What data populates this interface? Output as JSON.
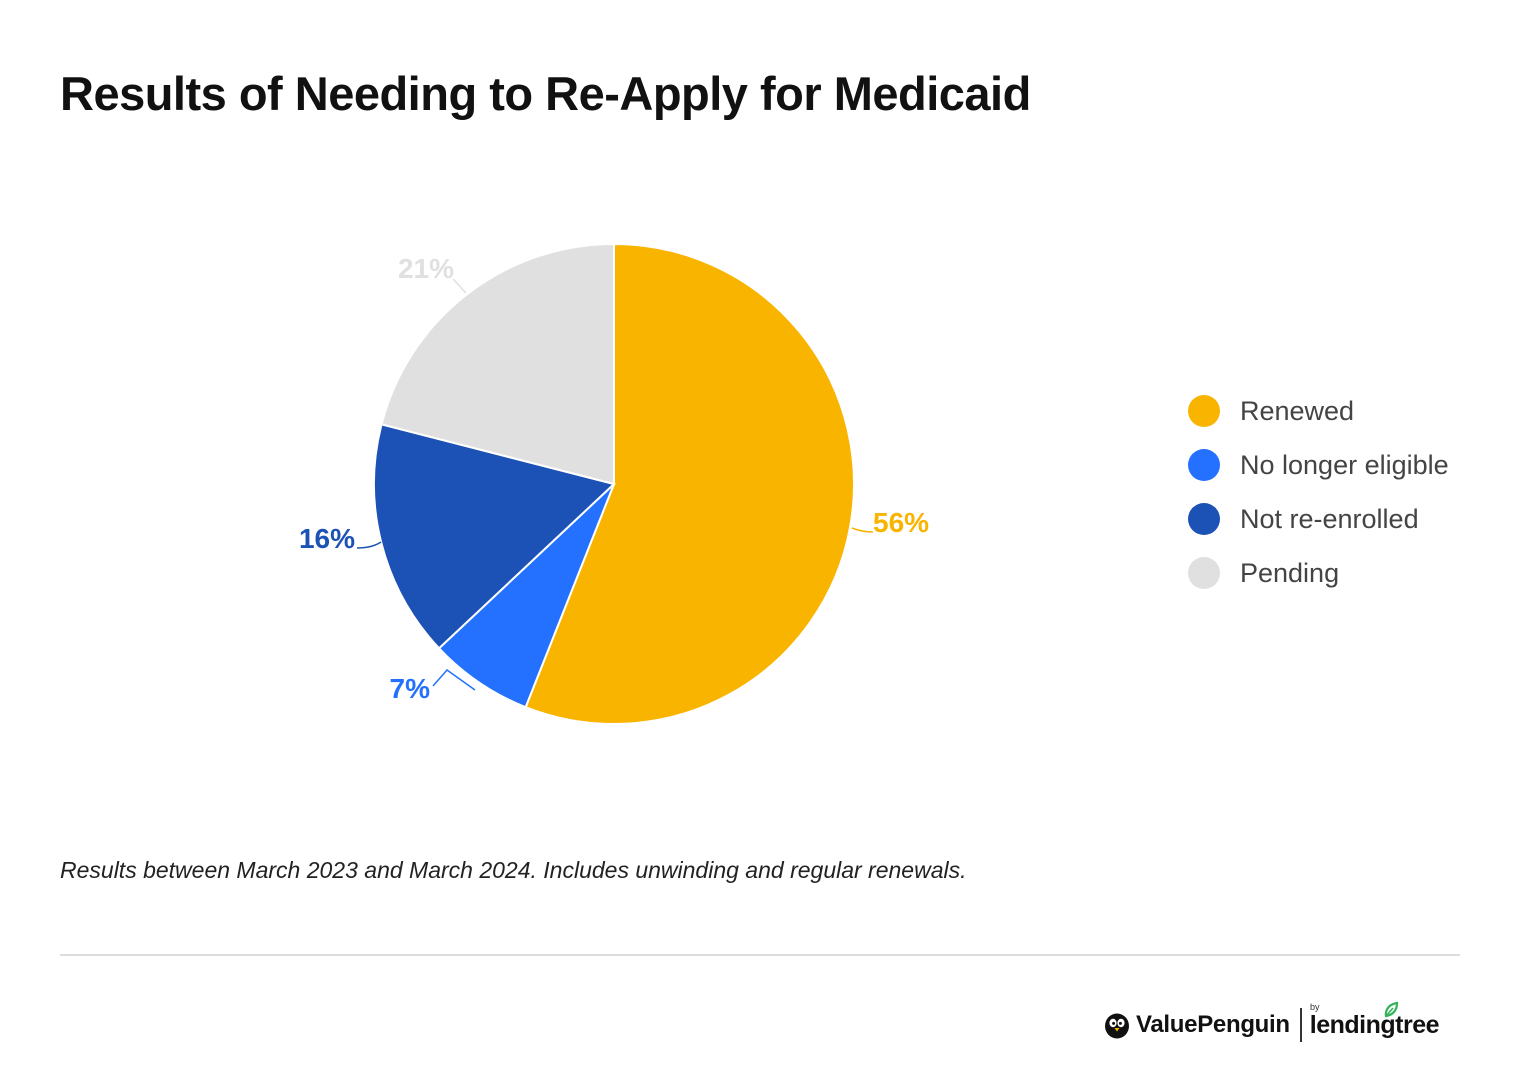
{
  "chart_data": {
    "type": "pie",
    "title": "Results of Needing to Re-Apply for Medicaid",
    "slices": [
      {
        "label": "Renewed",
        "value": 56,
        "display": "56%",
        "color": "#F9B400"
      },
      {
        "label": "No longer eligible",
        "value": 7,
        "display": "7%",
        "color": "#2371FE"
      },
      {
        "label": "Not re-enrolled",
        "value": 16,
        "display": "16%",
        "color": "#1C52B5"
      },
      {
        "label": "Pending",
        "value": 21,
        "display": "21%",
        "color": "#E0E0E0"
      }
    ],
    "legend_position": "right",
    "note": "Results between March 2023 and March 2024. Includes unwinding and regular renewals."
  },
  "brand": {
    "value_penguin": "ValuePenguin",
    "by": "by",
    "lending_tree": "lendingtree",
    "penguin_icon_color": "#111111",
    "leaf_icon_color": "#34B25A"
  }
}
